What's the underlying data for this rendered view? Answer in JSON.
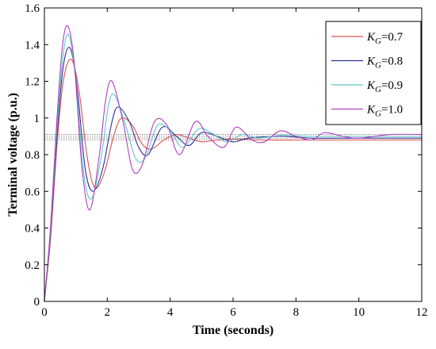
{
  "chart_data": {
    "type": "line",
    "xlabel": "Time (seconds)",
    "ylabel": "Terminal voltage (p.u.)",
    "xlim": [
      0,
      12
    ],
    "ylim": [
      0,
      1.6
    ],
    "xticks": [
      "0",
      "2",
      "4",
      "6",
      "8",
      "10",
      "12"
    ],
    "yticks": [
      "0",
      "0.2",
      "0.4",
      "0.6",
      "0.8",
      "1",
      "1.2",
      "1.4",
      "1.6"
    ],
    "grid": false,
    "legend_position": "top-right",
    "series": [
      {
        "name": "K_G=0.7",
        "legend_italic": "K",
        "legend_sub": "G",
        "legend_rest": "=0.7",
        "color": "#d9534f",
        "final_value": 0.88,
        "x": [
          0,
          0.2,
          0.4,
          0.6,
          0.85,
          1.1,
          1.35,
          1.6,
          1.9,
          2.2,
          2.45,
          2.8,
          3.1,
          3.4,
          3.8,
          4.2,
          4.6,
          5.0,
          5.5,
          6.0,
          7.0,
          8.0,
          9.0,
          10.0,
          11.0,
          12.0
        ],
        "y": [
          0,
          0.35,
          0.85,
          1.2,
          1.32,
          1.15,
          0.8,
          0.62,
          0.7,
          0.9,
          1.0,
          0.96,
          0.86,
          0.83,
          0.88,
          0.91,
          0.89,
          0.87,
          0.88,
          0.885,
          0.88,
          0.88,
          0.88,
          0.88,
          0.88,
          0.88
        ]
      },
      {
        "name": "K_G=0.8",
        "legend_italic": "K",
        "legend_sub": "G",
        "legend_rest": "=0.8",
        "color": "#2e3192",
        "final_value": 0.89,
        "x": [
          0,
          0.2,
          0.4,
          0.6,
          0.82,
          1.05,
          1.3,
          1.55,
          1.85,
          2.15,
          2.35,
          2.7,
          3.0,
          3.3,
          3.75,
          4.2,
          4.6,
          5.0,
          5.5,
          6.0,
          6.5,
          7.5,
          8.5,
          9.5,
          10.5,
          12.0
        ],
        "y": [
          0,
          0.38,
          0.9,
          1.28,
          1.38,
          1.15,
          0.72,
          0.6,
          0.72,
          0.98,
          1.06,
          0.98,
          0.84,
          0.8,
          0.95,
          0.9,
          0.85,
          0.92,
          0.9,
          0.87,
          0.89,
          0.9,
          0.89,
          0.89,
          0.89,
          0.89
        ]
      },
      {
        "name": "K_G=0.9",
        "legend_italic": "K",
        "legend_sub": "G",
        "legend_rest": "=0.9",
        "color": "#5fc8c8",
        "final_value": 0.9,
        "x": [
          0,
          0.2,
          0.4,
          0.6,
          0.78,
          1.0,
          1.25,
          1.5,
          1.8,
          2.05,
          2.25,
          2.6,
          2.9,
          3.2,
          3.6,
          4.0,
          4.4,
          4.9,
          5.3,
          5.8,
          6.3,
          6.8,
          7.5,
          8.5,
          10.0,
          12.0
        ],
        "y": [
          0,
          0.4,
          0.95,
          1.35,
          1.45,
          1.2,
          0.7,
          0.56,
          0.78,
          1.08,
          1.12,
          0.95,
          0.78,
          0.78,
          0.96,
          0.93,
          0.84,
          0.94,
          0.92,
          0.87,
          0.91,
          0.89,
          0.905,
          0.9,
          0.9,
          0.9
        ]
      },
      {
        "name": "K_G=1.0",
        "legend_italic": "K",
        "legend_sub": "G",
        "legend_rest": "=1.0",
        "color": "#b040c0",
        "final_value": 0.91,
        "x": [
          0,
          0.2,
          0.4,
          0.58,
          0.75,
          0.95,
          1.2,
          1.45,
          1.75,
          1.95,
          2.15,
          2.5,
          2.8,
          3.1,
          3.5,
          3.9,
          4.3,
          4.8,
          5.2,
          5.7,
          6.1,
          6.6,
          7.0,
          7.5,
          8.0,
          8.5,
          8.9,
          9.5,
          10.0,
          11.0,
          12.0
        ],
        "y": [
          0,
          0.42,
          1.0,
          1.4,
          1.5,
          1.3,
          0.72,
          0.5,
          0.8,
          1.1,
          1.2,
          0.98,
          0.72,
          0.74,
          0.98,
          0.96,
          0.8,
          0.98,
          0.9,
          0.84,
          0.95,
          0.88,
          0.87,
          0.93,
          0.9,
          0.88,
          0.92,
          0.9,
          0.89,
          0.91,
          0.91
        ]
      }
    ]
  }
}
